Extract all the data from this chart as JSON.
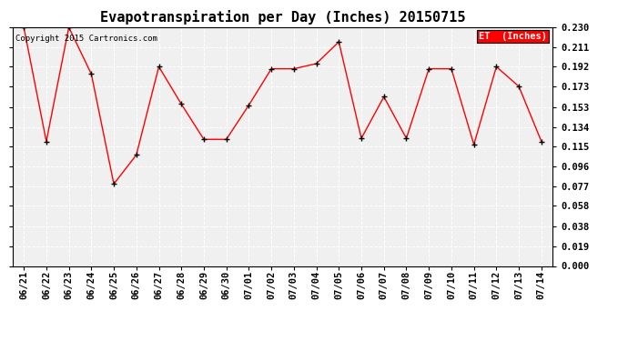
{
  "title": "Evapotranspiration per Day (Inches) 20150715",
  "x_labels": [
    "06/21",
    "06/22",
    "06/23",
    "06/24",
    "06/25",
    "06/26",
    "06/27",
    "06/28",
    "06/29",
    "06/30",
    "07/01",
    "07/02",
    "07/03",
    "07/04",
    "07/05",
    "07/06",
    "07/07",
    "07/08",
    "07/09",
    "07/10",
    "07/11",
    "07/12",
    "07/13",
    "07/14"
  ],
  "y_values": [
    0.23,
    0.12,
    0.23,
    0.185,
    0.079,
    0.107,
    0.192,
    0.156,
    0.122,
    0.122,
    0.155,
    0.19,
    0.19,
    0.195,
    0.216,
    0.123,
    0.163,
    0.123,
    0.19,
    0.19,
    0.117,
    0.192,
    0.173,
    0.12
  ],
  "y_ticks": [
    0.0,
    0.019,
    0.038,
    0.058,
    0.077,
    0.096,
    0.115,
    0.134,
    0.153,
    0.173,
    0.192,
    0.211,
    0.23
  ],
  "line_color": "#ff0000",
  "marker_color": "#000000",
  "background_color": "#ffffff",
  "plot_bg_color": "#f0f0f0",
  "grid_color": "#ffffff",
  "legend_label": "ET  (Inches)",
  "legend_bg": "#ff0000",
  "legend_text_color": "#ffffff",
  "copyright_text": "Copyright 2015 Cartronics.com",
  "copyright_color": "#000000",
  "copyright_fontsize": 6.5,
  "title_fontsize": 11,
  "tick_fontsize": 7.5,
  "ylim": [
    0.0,
    0.23
  ],
  "figsize": [
    6.9,
    3.75
  ],
  "dpi": 100
}
